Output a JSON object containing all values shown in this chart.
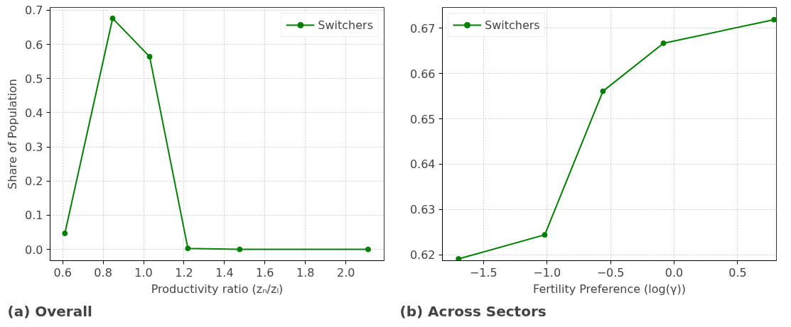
{
  "chart_data": [
    {
      "type": "line",
      "title": "(a) Overall",
      "xlabel": "Productivity ratio (zₙ/zₗ)",
      "ylabel": "Share of Population",
      "x": [
        0.611,
        0.847,
        1.03,
        1.219,
        1.475,
        2.11
      ],
      "series": [
        {
          "name": "Switchers",
          "color": "#008000",
          "values": [
            0.047,
            0.676,
            0.564,
            0.003,
            0.0,
            0.0
          ]
        }
      ],
      "xlim": [
        0.538,
        2.189
      ],
      "ylim": [
        -0.033,
        0.708
      ],
      "xticks": [
        {
          "value": 0.6,
          "label": "0.6"
        },
        {
          "value": 0.8,
          "label": "0.8"
        },
        {
          "value": 1.0,
          "label": "1.0"
        },
        {
          "value": 1.2,
          "label": "1.2"
        },
        {
          "value": 1.4,
          "label": "1.4"
        },
        {
          "value": 1.6,
          "label": "1.6"
        },
        {
          "value": 1.8,
          "label": "1.8"
        },
        {
          "value": 2.0,
          "label": "2.0"
        }
      ],
      "yticks": [
        {
          "value": 0.0,
          "label": "0.0"
        },
        0.1,
        0.2,
        0.3,
        0.4,
        0.5,
        0.6,
        0.7
      ],
      "grid": true,
      "legend": "top right",
      "marker": "circle",
      "line_style": "solid"
    },
    {
      "type": "line",
      "title": "(b) Across Sectors",
      "xlabel": "Fertility Preference (log(γ))",
      "x": [
        -1.696,
        -1.018,
        -0.56,
        -0.084,
        0.786
      ],
      "series": [
        {
          "name": "Switchers",
          "color": "#008000",
          "values": [
            0.6191,
            0.6244,
            0.6561,
            0.6667,
            0.6719
          ]
        }
      ],
      "xlim": [
        -1.823,
        0.805
      ],
      "ylim": [
        0.6187,
        0.6746
      ],
      "xticks": [
        {
          "value": -1.5,
          "label": "−1.5"
        },
        {
          "value": -1.0,
          "label": "−1.0"
        },
        {
          "value": -0.5,
          "label": "−0.5"
        },
        {
          "value": 0.0,
          "label": "0.0"
        },
        0.5
      ],
      "yticks": [
        0.62,
        0.63,
        0.64,
        0.65,
        0.66,
        0.67
      ],
      "grid": true,
      "legend": "top left",
      "marker": "circle",
      "line_style": "solid"
    }
  ]
}
